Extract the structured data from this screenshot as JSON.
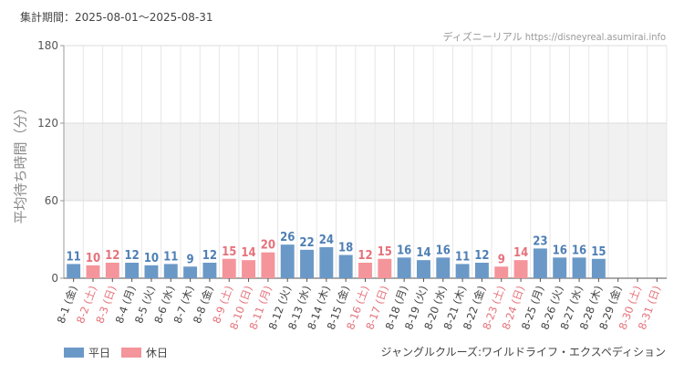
{
  "header": {
    "period": "集計期間：2025-08-01～2025-08-31",
    "site": "ディズニーリアル https://disneyreal.asumirai.info"
  },
  "footer": {
    "attraction": "ジャングルクルーズ:ワイルドライフ・エクスペディション"
  },
  "colors": {
    "weekday": "#6b99c7",
    "holiday": "#f4959b",
    "weekday_label": "#4e7fb5",
    "holiday_label": "#e5727a",
    "band": "#f1f1f1",
    "grid": "#e6e6e6"
  },
  "chart_data": {
    "type": "bar",
    "ylabel": "平均待ち時間（分）",
    "ylim": [
      0,
      180
    ],
    "yticks": [
      0,
      60,
      120,
      180
    ],
    "grid": true,
    "legend_position": "bottom-left",
    "series": [
      {
        "name": "平日",
        "key": "weekday"
      },
      {
        "name": "休日",
        "key": "holiday"
      }
    ],
    "categories": [
      "8-1 (金)",
      "8-2 (土)",
      "8-3 (日)",
      "8-4 (月)",
      "8-5 (火)",
      "8-6 (水)",
      "8-7 (木)",
      "8-8 (金)",
      "8-9 (土)",
      "8-10 (日)",
      "8-11 (月)",
      "8-12 (火)",
      "8-13 (水)",
      "8-14 (木)",
      "8-15 (金)",
      "8-16 (土)",
      "8-17 (日)",
      "8-18 (月)",
      "8-19 (火)",
      "8-20 (水)",
      "8-21 (木)",
      "8-22 (金)",
      "8-23 (土)",
      "8-24 (日)",
      "8-25 (月)",
      "8-26 (火)",
      "8-27 (水)",
      "8-28 (木)",
      "8-29 (金)",
      "8-30 (土)",
      "8-31 (日)"
    ],
    "values": [
      11,
      10,
      12,
      12,
      10,
      11,
      9,
      12,
      15,
      14,
      20,
      26,
      22,
      24,
      18,
      12,
      15,
      16,
      14,
      16,
      11,
      12,
      9,
      14,
      23,
      16,
      16,
      15,
      null,
      null,
      null
    ],
    "day_type": [
      "weekday",
      "holiday",
      "holiday",
      "weekday",
      "weekday",
      "weekday",
      "weekday",
      "weekday",
      "holiday",
      "holiday",
      "holiday",
      "weekday",
      "weekday",
      "weekday",
      "weekday",
      "holiday",
      "holiday",
      "weekday",
      "weekday",
      "weekday",
      "weekday",
      "weekday",
      "holiday",
      "holiday",
      "weekday",
      "weekday",
      "weekday",
      "weekday",
      "weekday",
      "holiday",
      "holiday"
    ]
  }
}
